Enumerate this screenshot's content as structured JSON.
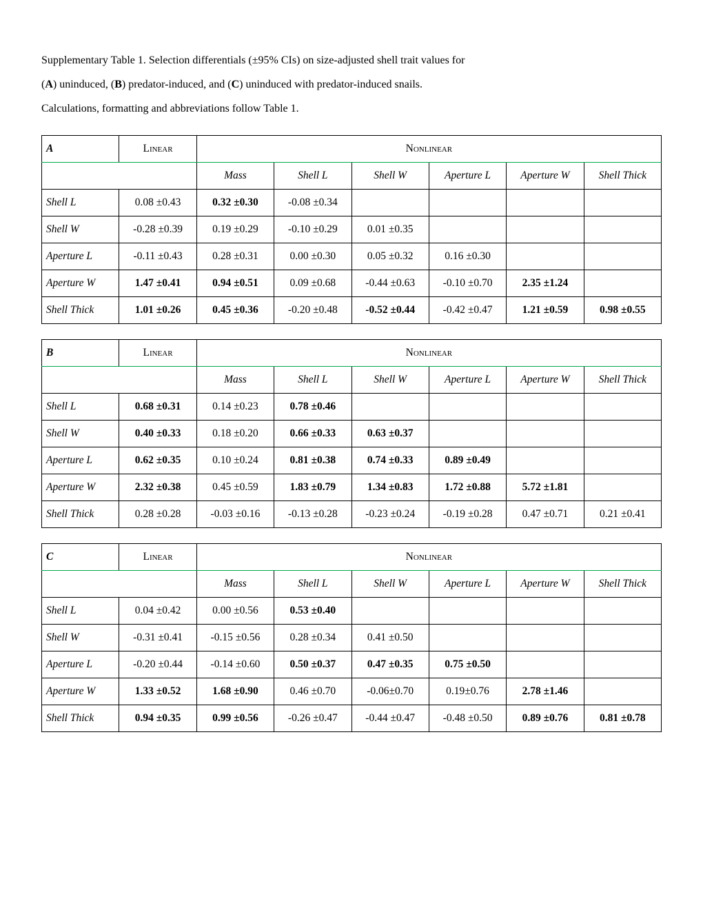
{
  "caption": {
    "line1_a": "Supplementary Table 1. Selection differentials (±95% CIs) on size-adjusted shell trait values for",
    "line2_a": "(",
    "A": "A",
    "line2_b": ") uninduced, (",
    "B": "B",
    "line2_c": ") predator-induced, and (",
    "C": "C",
    "line2_d": ") uninduced with predator-induced snails.",
    "line3": "Calculations, formatting and abbreviations follow Table 1."
  },
  "headers": {
    "linear": "Linear",
    "nonlinear": "Nonlinear",
    "cols": [
      "Mass",
      "Shell L",
      "Shell W",
      "Aperture L",
      "Aperture W",
      "Shell Thick"
    ]
  },
  "panels": [
    {
      "id": "A",
      "rows": [
        {
          "label": "Shell L",
          "linear": {
            "v": "0.08 ±0.43",
            "b": false
          },
          "nl": [
            {
              "v": "0.32 ±0.30",
              "b": true
            },
            {
              "v": "-0.08 ±0.34",
              "b": false
            },
            null,
            null,
            null,
            null
          ]
        },
        {
          "label": "Shell W",
          "linear": {
            "v": "-0.28 ±0.39",
            "b": false
          },
          "nl": [
            {
              "v": "0.19 ±0.29",
              "b": false
            },
            {
              "v": "-0.10 ±0.29",
              "b": false
            },
            {
              "v": "0.01 ±0.35",
              "b": false
            },
            null,
            null,
            null
          ]
        },
        {
          "label": "Aperture L",
          "linear": {
            "v": "-0.11 ±0.43",
            "b": false
          },
          "nl": [
            {
              "v": "0.28 ±0.31",
              "b": false
            },
            {
              "v": "0.00 ±0.30",
              "b": false
            },
            {
              "v": "0.05 ±0.32",
              "b": false
            },
            {
              "v": "0.16 ±0.30",
              "b": false
            },
            null,
            null
          ]
        },
        {
          "label": "Aperture W",
          "linear": {
            "v": "1.47 ±0.41",
            "b": true
          },
          "nl": [
            {
              "v": "0.94 ±0.51",
              "b": true
            },
            {
              "v": "0.09 ±0.68",
              "b": false
            },
            {
              "v": "-0.44 ±0.63",
              "b": false
            },
            {
              "v": "-0.10 ±0.70",
              "b": false
            },
            {
              "v": "2.35 ±1.24",
              "b": true
            },
            null
          ]
        },
        {
          "label": "Shell Thick",
          "linear": {
            "v": "1.01 ±0.26",
            "b": true
          },
          "nl": [
            {
              "v": "0.45 ±0.36",
              "b": true
            },
            {
              "v": "-0.20 ±0.48",
              "b": false
            },
            {
              "v": "-0.52 ±0.44",
              "b": true
            },
            {
              "v": "-0.42 ±0.47",
              "b": false
            },
            {
              "v": "1.21 ±0.59",
              "b": true
            },
            {
              "v": "0.98 ±0.55",
              "b": true
            }
          ]
        }
      ]
    },
    {
      "id": "B",
      "rows": [
        {
          "label": "Shell L",
          "linear": {
            "v": "0.68 ±0.31",
            "b": true
          },
          "nl": [
            {
              "v": "0.14 ±0.23",
              "b": false
            },
            {
              "v": "0.78 ±0.46",
              "b": true
            },
            null,
            null,
            null,
            null
          ]
        },
        {
          "label": "Shell W",
          "linear": {
            "v": "0.40 ±0.33",
            "b": true
          },
          "nl": [
            {
              "v": "0.18 ±0.20",
              "b": false
            },
            {
              "v": "0.66 ±0.33",
              "b": true
            },
            {
              "v": "0.63 ±0.37",
              "b": true
            },
            null,
            null,
            null
          ]
        },
        {
          "label": "Aperture L",
          "linear": {
            "v": "0.62 ±0.35",
            "b": true
          },
          "nl": [
            {
              "v": "0.10 ±0.24",
              "b": false
            },
            {
              "v": "0.81 ±0.38",
              "b": true
            },
            {
              "v": "0.74 ±0.33",
              "b": true
            },
            {
              "v": "0.89 ±0.49",
              "b": true
            },
            null,
            null
          ]
        },
        {
          "label": "Aperture W",
          "linear": {
            "v": "2.32 ±0.38",
            "b": true
          },
          "nl": [
            {
              "v": "0.45 ±0.59",
              "b": false
            },
            {
              "v": "1.83 ±0.79",
              "b": true
            },
            {
              "v": "1.34 ±0.83",
              "b": true
            },
            {
              "v": "1.72 ±0.88",
              "b": true
            },
            {
              "v": "5.72 ±1.81",
              "b": true
            },
            null
          ]
        },
        {
          "label": "Shell Thick",
          "linear": {
            "v": "0.28 ±0.28",
            "b": false
          },
          "nl": [
            {
              "v": "-0.03 ±0.16",
              "b": false
            },
            {
              "v": "-0.13 ±0.28",
              "b": false
            },
            {
              "v": "-0.23 ±0.24",
              "b": false
            },
            {
              "v": "-0.19 ±0.28",
              "b": false
            },
            {
              "v": "0.47 ±0.71",
              "b": false
            },
            {
              "v": "0.21 ±0.41",
              "b": false
            }
          ]
        }
      ]
    },
    {
      "id": "C",
      "rows": [
        {
          "label": "Shell L",
          "linear": {
            "v": "0.04 ±0.42",
            "b": false
          },
          "nl": [
            {
              "v": "0.00 ±0.56",
              "b": false
            },
            {
              "v": "0.53 ±0.40",
              "b": true
            },
            null,
            null,
            null,
            null
          ]
        },
        {
          "label": "Shell W",
          "linear": {
            "v": "-0.31 ±0.41",
            "b": false
          },
          "nl": [
            {
              "v": "-0.15 ±0.56",
              "b": false
            },
            {
              "v": "0.28 ±0.34",
              "b": false
            },
            {
              "v": "0.41 ±0.50",
              "b": false
            },
            null,
            null,
            null
          ]
        },
        {
          "label": "Aperture L",
          "linear": {
            "v": "-0.20 ±0.44",
            "b": false
          },
          "nl": [
            {
              "v": "-0.14 ±0.60",
              "b": false
            },
            {
              "v": "0.50 ±0.37",
              "b": true
            },
            {
              "v": "0.47 ±0.35",
              "b": true
            },
            {
              "v": "0.75 ±0.50",
              "b": true
            },
            null,
            null
          ]
        },
        {
          "label": "Aperture W",
          "linear": {
            "v": "1.33 ±0.52",
            "b": true
          },
          "nl": [
            {
              "v": "1.68 ±0.90",
              "b": true
            },
            {
              "v": "0.46 ±0.70",
              "b": false
            },
            {
              "v": "-0.06±0.70",
              "b": false
            },
            {
              "v": "0.19±0.76",
              "b": false
            },
            {
              "v": "2.78 ±1.46",
              "b": true
            },
            null
          ]
        },
        {
          "label": "Shell Thick",
          "linear": {
            "v": "0.94 ±0.35",
            "b": true
          },
          "nl": [
            {
              "v": "0.99 ±0.56",
              "b": true
            },
            {
              "v": "-0.26 ±0.47",
              "b": false
            },
            {
              "v": "-0.44 ±0.47",
              "b": false
            },
            {
              "v": "-0.48 ±0.50",
              "b": false
            },
            {
              "v": "0.89 ±0.76",
              "b": true
            },
            {
              "v": "0.81 ±0.78",
              "b": true
            }
          ]
        }
      ]
    }
  ]
}
